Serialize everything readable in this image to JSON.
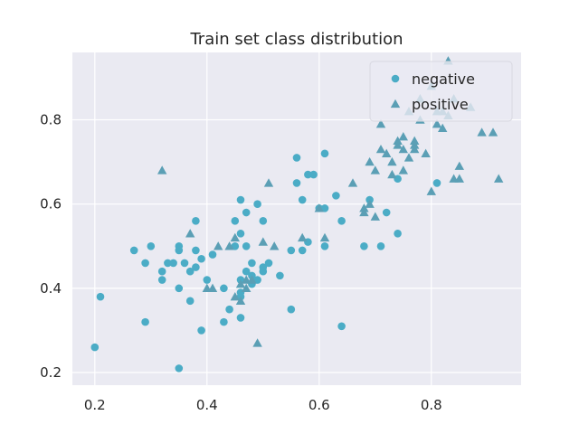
{
  "chart_data": {
    "type": "scatter",
    "title": "Train set class distribution",
    "xlabel": "",
    "ylabel": "",
    "xlim": [
      0.16,
      0.96
    ],
    "ylim": [
      0.17,
      0.96
    ],
    "xticks": [
      0.2,
      0.4,
      0.6,
      0.8
    ],
    "yticks": [
      0.2,
      0.4,
      0.6,
      0.8
    ],
    "xtick_labels": [
      "0.2",
      "0.4",
      "0.6",
      "0.8"
    ],
    "ytick_labels": [
      "0.2",
      "0.4",
      "0.6",
      "0.8"
    ],
    "grid": true,
    "legend_position": "top-right",
    "background_color": "#eaeaf2",
    "series": [
      {
        "name": "negative",
        "marker": "circle",
        "color": "#4bacc6",
        "x": [
          0.2,
          0.21,
          0.27,
          0.29,
          0.29,
          0.3,
          0.32,
          0.32,
          0.33,
          0.34,
          0.35,
          0.35,
          0.35,
          0.35,
          0.36,
          0.37,
          0.37,
          0.38,
          0.38,
          0.38,
          0.39,
          0.39,
          0.4,
          0.41,
          0.43,
          0.43,
          0.44,
          0.45,
          0.45,
          0.46,
          0.46,
          0.46,
          0.46,
          0.46,
          0.46,
          0.47,
          0.47,
          0.47,
          0.48,
          0.48,
          0.48,
          0.49,
          0.49,
          0.5,
          0.5,
          0.5,
          0.51,
          0.53,
          0.55,
          0.55,
          0.56,
          0.56,
          0.57,
          0.57,
          0.58,
          0.58,
          0.59,
          0.6,
          0.61,
          0.61,
          0.61,
          0.63,
          0.64,
          0.64,
          0.68,
          0.69,
          0.71,
          0.72,
          0.74,
          0.74,
          0.81
        ],
        "y": [
          0.26,
          0.38,
          0.49,
          0.46,
          0.32,
          0.5,
          0.44,
          0.42,
          0.46,
          0.46,
          0.5,
          0.49,
          0.4,
          0.21,
          0.46,
          0.44,
          0.37,
          0.56,
          0.49,
          0.45,
          0.47,
          0.3,
          0.42,
          0.48,
          0.4,
          0.32,
          0.35,
          0.56,
          0.5,
          0.61,
          0.53,
          0.42,
          0.39,
          0.38,
          0.33,
          0.58,
          0.5,
          0.44,
          0.46,
          0.43,
          0.41,
          0.6,
          0.42,
          0.56,
          0.44,
          0.45,
          0.46,
          0.43,
          0.49,
          0.35,
          0.71,
          0.65,
          0.61,
          0.49,
          0.67,
          0.51,
          0.67,
          0.59,
          0.72,
          0.59,
          0.5,
          0.62,
          0.56,
          0.31,
          0.5,
          0.61,
          0.5,
          0.58,
          0.66,
          0.53,
          0.65
        ]
      },
      {
        "name": "positive",
        "marker": "triangle",
        "color": "#5b9fb5",
        "x": [
          0.32,
          0.37,
          0.4,
          0.41,
          0.42,
          0.44,
          0.45,
          0.45,
          0.46,
          0.46,
          0.47,
          0.47,
          0.48,
          0.49,
          0.5,
          0.51,
          0.52,
          0.57,
          0.6,
          0.61,
          0.66,
          0.68,
          0.68,
          0.69,
          0.69,
          0.7,
          0.7,
          0.71,
          0.71,
          0.72,
          0.73,
          0.73,
          0.74,
          0.74,
          0.75,
          0.75,
          0.75,
          0.76,
          0.76,
          0.77,
          0.77,
          0.77,
          0.78,
          0.78,
          0.79,
          0.8,
          0.8,
          0.81,
          0.81,
          0.82,
          0.82,
          0.83,
          0.83,
          0.84,
          0.84,
          0.85,
          0.85,
          0.87,
          0.89,
          0.91,
          0.92
        ],
        "y": [
          0.68,
          0.53,
          0.4,
          0.4,
          0.5,
          0.5,
          0.38,
          0.52,
          0.41,
          0.37,
          0.42,
          0.4,
          0.42,
          0.27,
          0.51,
          0.65,
          0.5,
          0.52,
          0.59,
          0.52,
          0.65,
          0.58,
          0.59,
          0.7,
          0.6,
          0.68,
          0.57,
          0.73,
          0.79,
          0.72,
          0.7,
          0.67,
          0.75,
          0.74,
          0.68,
          0.73,
          0.76,
          0.71,
          0.82,
          0.73,
          0.74,
          0.75,
          0.8,
          0.85,
          0.72,
          0.63,
          0.88,
          0.79,
          0.82,
          0.78,
          0.82,
          0.81,
          0.94,
          0.66,
          0.85,
          0.69,
          0.66,
          0.83,
          0.77,
          0.77,
          0.66
        ]
      }
    ]
  }
}
